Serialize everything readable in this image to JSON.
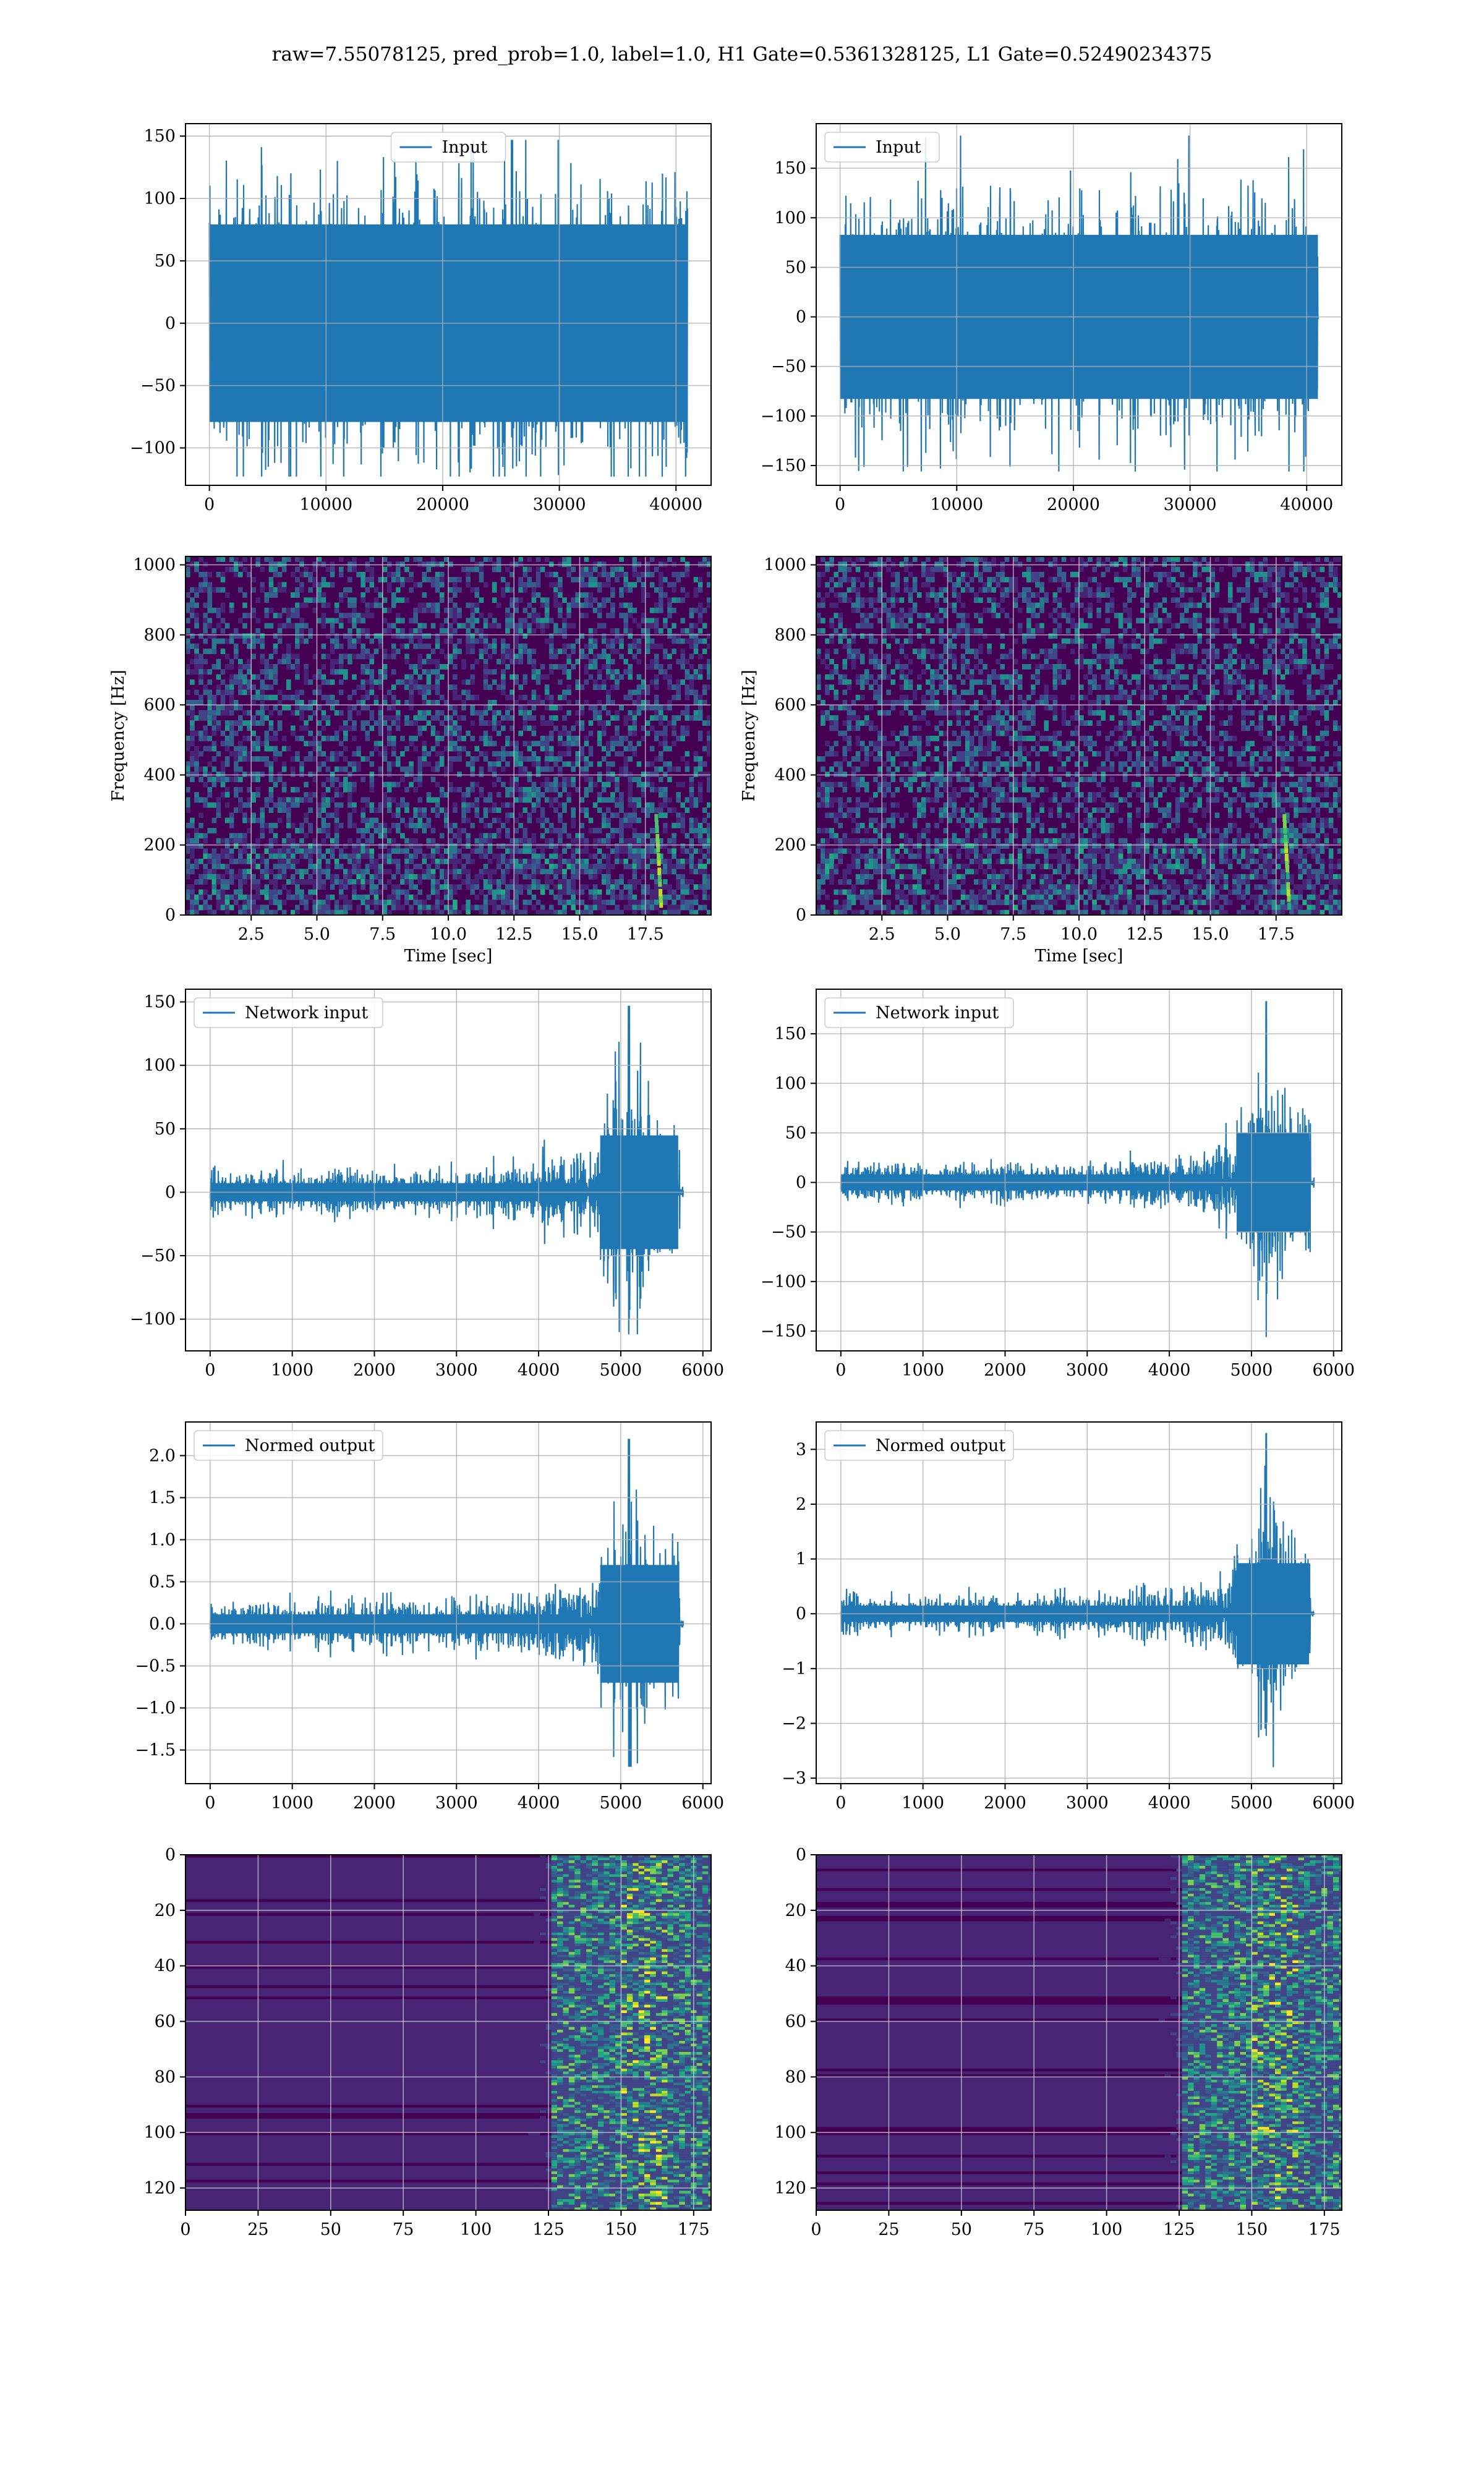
{
  "suptitle": "raw=7.55078125, pred_prob=1.0, label=1.0, H1 Gate=0.5361328125, L1 Gate=0.52490234375",
  "colors": {
    "line": "#1f77b4",
    "grid": "#b0b0b0",
    "viridis_low": "#440154",
    "viridis_mid": "#21918c",
    "viridis_high": "#fde725"
  },
  "chart_data": [
    {
      "id": "h1-input",
      "type": "line",
      "legend": "Input",
      "legend_loc": "upper center",
      "xlim": [
        -2048,
        43008
      ],
      "ylim": [
        -130,
        160
      ],
      "xticks": [
        0,
        10000,
        20000,
        30000,
        40000
      ],
      "yticks": [
        -100,
        -50,
        0,
        50,
        100,
        150
      ],
      "xticklabels": [
        "0",
        "10000",
        "20000",
        "30000",
        "40000"
      ],
      "yticklabels": [
        "−100",
        "−50",
        "0",
        "50",
        "100",
        "150"
      ],
      "grid": true,
      "signal": {
        "n": 40960,
        "noise_amp": 110,
        "burst_at": null,
        "max": 147,
        "min": -123
      }
    },
    {
      "id": "l1-input",
      "type": "line",
      "legend": "Input",
      "legend_loc": "upper left",
      "xlim": [
        -2048,
        43008
      ],
      "ylim": [
        -170,
        195
      ],
      "xticks": [
        0,
        10000,
        20000,
        30000,
        40000
      ],
      "yticks": [
        -150,
        -100,
        -50,
        0,
        50,
        100,
        150
      ],
      "xticklabels": [
        "0",
        "10000",
        "20000",
        "30000",
        "40000"
      ],
      "yticklabels": [
        "−150",
        "−100",
        "−50",
        "0",
        "50",
        "100",
        "150"
      ],
      "grid": true,
      "signal": {
        "n": 40960,
        "noise_amp": 115,
        "burst_at": null,
        "max": 183,
        "min": -156
      }
    },
    {
      "id": "h1-spectrogram",
      "type": "heatmap",
      "colormap": "viridis",
      "xlim": [
        0,
        20
      ],
      "ylim": [
        0,
        1024
      ],
      "xticks": [
        2.5,
        5.0,
        7.5,
        10.0,
        12.5,
        15.0,
        17.5
      ],
      "yticks": [
        0,
        200,
        400,
        600,
        800,
        1000
      ],
      "xticklabels": [
        "2.5",
        "5.0",
        "7.5",
        "10.0",
        "12.5",
        "15.0",
        "17.5"
      ],
      "yticklabels": [
        "0",
        "200",
        "400",
        "600",
        "800",
        "1000"
      ],
      "xlabel": "Time [sec]",
      "ylabel": "Frequency [Hz]",
      "grid": true,
      "chirp_time": 18.1
    },
    {
      "id": "l1-spectrogram",
      "type": "heatmap",
      "colormap": "viridis",
      "xlim": [
        0,
        20
      ],
      "ylim": [
        0,
        1024
      ],
      "xticks": [
        2.5,
        5.0,
        7.5,
        10.0,
        12.5,
        15.0,
        17.5
      ],
      "yticks": [
        0,
        200,
        400,
        600,
        800,
        1000
      ],
      "xticklabels": [
        "2.5",
        "5.0",
        "7.5",
        "10.0",
        "12.5",
        "15.0",
        "17.5"
      ],
      "yticklabels": [
        "0",
        "200",
        "400",
        "600",
        "800",
        "1000"
      ],
      "xlabel": "Time [sec]",
      "ylabel": "Frequency [Hz]",
      "grid": true,
      "chirp_time": 18.0
    },
    {
      "id": "h1-network-input",
      "type": "line",
      "legend": "Network input",
      "legend_loc": "upper left",
      "xlim": [
        -300,
        6100
      ],
      "ylim": [
        -125,
        160
      ],
      "xticks": [
        0,
        1000,
        2000,
        3000,
        4000,
        5000,
        6000
      ],
      "yticks": [
        -100,
        -50,
        0,
        50,
        100,
        150
      ],
      "xticklabels": [
        "0",
        "1000",
        "2000",
        "3000",
        "4000",
        "5000",
        "6000"
      ],
      "yticklabels": [
        "−100",
        "−50",
        "0",
        "50",
        "100",
        "150"
      ],
      "grid": true,
      "signal": {
        "n": 5760,
        "noise_amp": 16,
        "burst_at": 5100,
        "max": 147,
        "min": -112
      }
    },
    {
      "id": "l1-network-input",
      "type": "line",
      "legend": "Network input",
      "legend_loc": "upper left",
      "xlim": [
        -300,
        6100
      ],
      "ylim": [
        -170,
        195
      ],
      "xticks": [
        0,
        1000,
        2000,
        3000,
        4000,
        5000,
        6000
      ],
      "yticks": [
        -150,
        -100,
        -50,
        0,
        50,
        100,
        150
      ],
      "xticklabels": [
        "0",
        "1000",
        "2000",
        "3000",
        "4000",
        "5000",
        "6000"
      ],
      "yticklabels": [
        "−150",
        "−100",
        "−50",
        "0",
        "50",
        "100",
        "150"
      ],
      "grid": true,
      "signal": {
        "n": 5760,
        "noise_amp": 18,
        "burst_at": 5180,
        "max": 183,
        "min": -156
      }
    },
    {
      "id": "h1-normed-output",
      "type": "line",
      "legend": "Normed output",
      "legend_loc": "upper left",
      "xlim": [
        -300,
        6100
      ],
      "ylim": [
        -1.9,
        2.4
      ],
      "xticks": [
        0,
        1000,
        2000,
        3000,
        4000,
        5000,
        6000
      ],
      "yticks": [
        -1.5,
        -1.0,
        -0.5,
        0.0,
        0.5,
        1.0,
        1.5,
        2.0
      ],
      "xticklabels": [
        "0",
        "1000",
        "2000",
        "3000",
        "4000",
        "5000",
        "6000"
      ],
      "yticklabels": [
        "−1.5",
        "−1.0",
        "−0.5",
        "0.0",
        "0.5",
        "1.0",
        "1.5",
        "2.0"
      ],
      "grid": true,
      "signal": {
        "n": 5760,
        "noise_amp": 0.25,
        "burst_at": 5100,
        "max": 2.2,
        "min": -1.7
      }
    },
    {
      "id": "l1-normed-output",
      "type": "line",
      "legend": "Normed output",
      "legend_loc": "upper left",
      "xlim": [
        -300,
        6100
      ],
      "ylim": [
        -3.1,
        3.5
      ],
      "xticks": [
        0,
        1000,
        2000,
        3000,
        4000,
        5000,
        6000
      ],
      "yticks": [
        -3,
        -2,
        -1,
        0,
        1,
        2,
        3
      ],
      "xticklabels": [
        "0",
        "1000",
        "2000",
        "3000",
        "4000",
        "5000",
        "6000"
      ],
      "yticklabels": [
        "−3",
        "−2",
        "−1",
        "0",
        "1",
        "2",
        "3"
      ],
      "grid": true,
      "signal": {
        "n": 5760,
        "noise_amp": 0.33,
        "burst_at": 5180,
        "max": 3.3,
        "min": -2.8
      }
    },
    {
      "id": "h1-feature-map",
      "type": "heatmap",
      "colormap": "viridis",
      "origin": "upper",
      "xlim": [
        0,
        181
      ],
      "ylim": [
        128,
        0
      ],
      "xticks": [
        0,
        25,
        50,
        75,
        100,
        125,
        150,
        175
      ],
      "yticks": [
        0,
        20,
        40,
        60,
        80,
        100,
        120
      ],
      "xticklabels": [
        "0",
        "25",
        "50",
        "75",
        "100",
        "125",
        "150",
        "175"
      ],
      "yticklabels": [
        "0",
        "20",
        "40",
        "60",
        "80",
        "100",
        "120"
      ],
      "grid": true,
      "active_from": 125
    },
    {
      "id": "l1-feature-map",
      "type": "heatmap",
      "colormap": "viridis",
      "origin": "upper",
      "xlim": [
        0,
        181
      ],
      "ylim": [
        128,
        0
      ],
      "xticks": [
        0,
        25,
        50,
        75,
        100,
        125,
        150,
        175
      ],
      "yticks": [
        0,
        20,
        40,
        60,
        80,
        100,
        120
      ],
      "xticklabels": [
        "0",
        "25",
        "50",
        "75",
        "100",
        "125",
        "150",
        "175"
      ],
      "yticklabels": [
        "0",
        "20",
        "40",
        "60",
        "80",
        "100",
        "120"
      ],
      "grid": true,
      "active_from": 125
    }
  ]
}
